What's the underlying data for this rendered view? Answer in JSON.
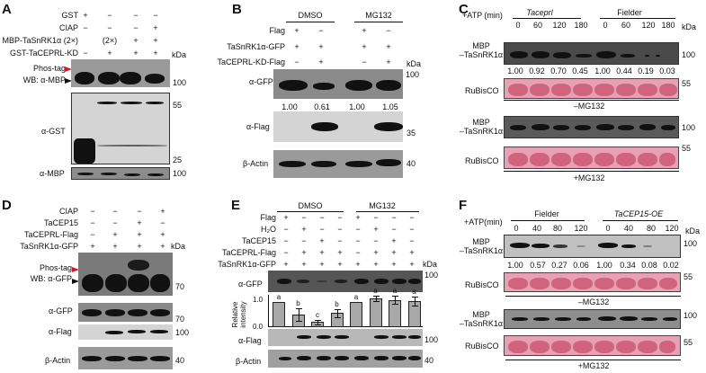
{
  "panels": {
    "A": {
      "label": "A",
      "rows": [
        {
          "name": "GST",
          "values": [
            "+",
            "−",
            "−",
            "−"
          ]
        },
        {
          "name": "CIAP",
          "values": [
            "−",
            "−",
            "−",
            "+"
          ]
        },
        {
          "name": "MBP-TaSnRK1α (2×)",
          "values": [
            "",
            "(2×)",
            "+",
            "+"
          ]
        },
        {
          "name": "GST-TaCEPRL-KD",
          "values": [
            "−",
            "+",
            "+",
            "+"
          ]
        }
      ],
      "kda": "kDa",
      "blot_labels": {
        "phos_tag": "Phos-tag",
        "wb": "WB: α-MBP",
        "gst": "α-GST",
        "mbp": "α-MBP"
      },
      "markers": {
        "m100a": "100",
        "m55": "55",
        "m25": "25",
        "m100b": "100"
      }
    },
    "B": {
      "label": "B",
      "groups": [
        "DMSO",
        "MG132"
      ],
      "rows": [
        {
          "name": "Flag",
          "values": [
            "+",
            "−",
            "+",
            "−"
          ]
        },
        {
          "name": "TaSnRK1α-GFP",
          "values": [
            "+",
            "+",
            "+",
            "+"
          ]
        },
        {
          "name": "TaCEPRL-KD-Flag",
          "values": [
            "−",
            "+",
            "−",
            "+"
          ]
        }
      ],
      "kda": "kDa",
      "blot_labels": {
        "gfp": "α-GFP",
        "flag": "α-Flag",
        "actin": "β-Actin"
      },
      "quant": [
        "1.00",
        "0.61",
        "1.00",
        "1.05"
      ],
      "markers": {
        "m100": "100",
        "m35": "35",
        "m40": "40"
      }
    },
    "C": {
      "label": "C",
      "atp_label": "+ATP (min)",
      "groups": [
        "Taceprl",
        "Fielder"
      ],
      "times": [
        "0",
        "60",
        "120",
        "180",
        "0",
        "60",
        "120",
        "180"
      ],
      "kda": "kDa",
      "mbp_label_1": "MBP",
      "mbp_label_2": "–TaSnRK1α",
      "rubisco": "RuBisCO",
      "quant": [
        "1.00",
        "0.92",
        "0.70",
        "0.45",
        "1.00",
        "0.44",
        "0.19",
        "0.03"
      ],
      "cond_minus": "–MG132",
      "cond_plus": "+MG132",
      "markers": {
        "m100": "100",
        "m55": "55"
      }
    },
    "D": {
      "label": "D",
      "rows": [
        {
          "name": "CIAP",
          "values": [
            "−",
            "−",
            "−",
            "+"
          ]
        },
        {
          "name": "TaCEP15",
          "values": [
            "−",
            "−",
            "+",
            "−"
          ]
        },
        {
          "name": "TaCEPRL-Flag",
          "values": [
            "−",
            "+",
            "+",
            "+"
          ]
        },
        {
          "name": "TaSnRK1α-GFP",
          "values": [
            "+",
            "+",
            "+",
            "+"
          ]
        }
      ],
      "kda": "kDa",
      "blot_labels": {
        "phos_tag": "Phos-tag",
        "wb": "WB: α-GFP",
        "gfp": "α-GFP",
        "flag": "α-Flag",
        "actin": "β-Actin"
      },
      "markers": {
        "m70a": "70",
        "m70b": "70",
        "m100": "100",
        "m40": "40"
      }
    },
    "E": {
      "label": "E",
      "groups": [
        "DMSO",
        "MG132"
      ],
      "rows": [
        {
          "name": "Flag",
          "values": [
            "+",
            "−",
            "−",
            "−",
            "+",
            "−",
            "−",
            "−"
          ]
        },
        {
          "name": "H₂O",
          "values": [
            "−",
            "+",
            "−",
            "−",
            "−",
            "+",
            "−",
            "−"
          ]
        },
        {
          "name": "TaCEP15",
          "values": [
            "−",
            "−",
            "+",
            "−",
            "−",
            "−",
            "+",
            "−"
          ]
        },
        {
          "name": "TaCEPRL-Flag",
          "values": [
            "−",
            "+",
            "+",
            "+",
            "−",
            "+",
            "+",
            "+"
          ]
        },
        {
          "name": "TaSnRK1α-GFP",
          "values": [
            "+",
            "+",
            "+",
            "+",
            "+",
            "+",
            "+",
            "+"
          ]
        }
      ],
      "kda": "kDa",
      "blot_labels": {
        "gfp": "α-GFP",
        "flag": "α-Flag",
        "actin": "β-Actin"
      },
      "markers": {
        "m100a": "100",
        "m100b": "100",
        "m40": "40"
      }
    },
    "F": {
      "label": "F",
      "atp_label": "+ATP(min)",
      "groups": [
        "Fielder",
        "TaCEP15-OE"
      ],
      "times": [
        "0",
        "40",
        "80",
        "120",
        "0",
        "40",
        "80",
        "120"
      ],
      "kda": "kDa",
      "mbp_label_1": "MBP",
      "mbp_label_2": "–TaSnRK1α",
      "rubisco": "RuBisCO",
      "quant": [
        "1.00",
        "0.57",
        "0.27",
        "0.06",
        "1.00",
        "0.34",
        "0.08",
        "0.02"
      ],
      "cond_minus": "–MG132",
      "cond_plus": "+MG132",
      "markers": {
        "m100": "100",
        "m55": "55"
      }
    }
  },
  "chart_data": {
    "type": "bar",
    "title": "",
    "xlabel": "",
    "ylabel": "Relative intensity",
    "ylim": [
      0,
      1.3
    ],
    "yticks": [
      "0.0",
      "1.0"
    ],
    "categories": [
      "DMSO Flag",
      "DMSO H2O+TaCEPRL",
      "DMSO TaCEP15+TaCEPRL",
      "DMSO TaCEPRL",
      "MG132 Flag",
      "MG132 H2O+TaCEPRL",
      "MG132 TaCEP15+TaCEPRL",
      "MG132 TaCEPRL"
    ],
    "values": [
      1.0,
      0.52,
      0.2,
      0.57,
      1.0,
      1.15,
      1.1,
      1.04
    ],
    "errors": [
      0.0,
      0.25,
      0.1,
      0.17,
      0.0,
      0.1,
      0.15,
      0.18
    ],
    "significance": [
      "a",
      "b",
      "c",
      "b",
      "a",
      "a",
      "a",
      "a"
    ],
    "grid": false
  }
}
